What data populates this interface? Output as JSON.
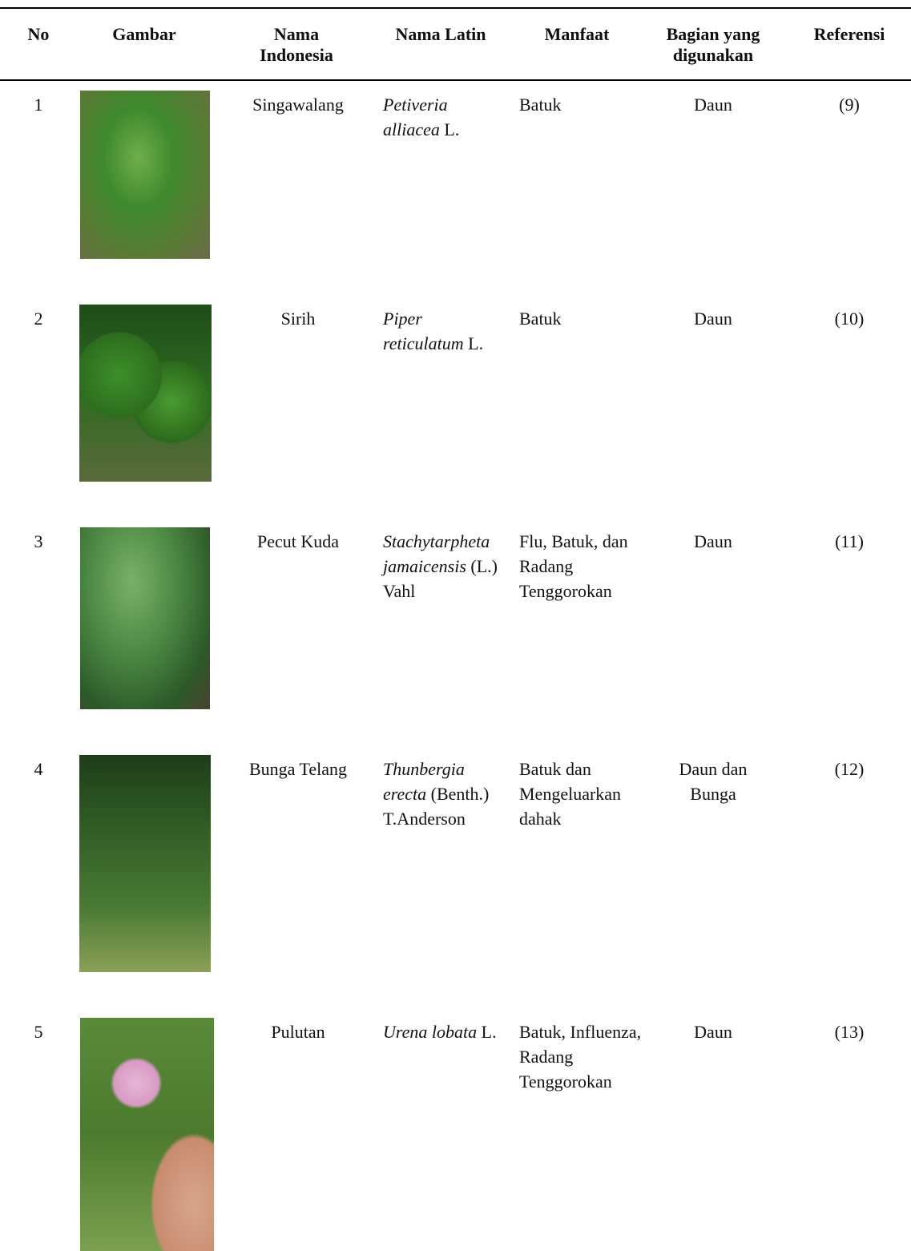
{
  "table": {
    "header": [
      "No",
      "Gambar",
      "Nama Indonesia",
      "Nama Latin",
      "Manfaat",
      "Bagian yang digunakan",
      "Referensi"
    ],
    "rows": [
      {
        "no": "1",
        "nama_indonesia": "Singawalang",
        "nama_latin": {
          "genus_species": "Petiveria alliacea",
          "author": "L."
        },
        "manfaat": "Batuk",
        "bagian": "Daun",
        "referensi": "(9)"
      },
      {
        "no": "2",
        "nama_indonesia": "Sirih",
        "nama_latin": {
          "genus_species": "Piper reticulatum",
          "author": "L."
        },
        "manfaat": "Batuk",
        "bagian": "Daun",
        "referensi": "(10)"
      },
      {
        "no": "3",
        "nama_indonesia": "Pecut Kuda",
        "nama_latin": {
          "genus_species": "Stachytarpheta jamaicensis",
          "author": "(L.) Vahl"
        },
        "manfaat": "Flu, Batuk, dan Radang Tenggorokan",
        "bagian": "Daun",
        "referensi": "(11)"
      },
      {
        "no": "4",
        "nama_indonesia": "Bunga Telang",
        "nama_latin": {
          "genus_species": "Thunbergia erecta",
          "author": "(Benth.) T.Anderson"
        },
        "manfaat": "Batuk dan Mengeluarkan dahak",
        "bagian": "Daun dan Bunga",
        "referensi": "(12)"
      },
      {
        "no": "5",
        "nama_indonesia": "Pulutan",
        "nama_latin": {
          "genus_species": "Urena lobata",
          "author": "L."
        },
        "manfaat": "Batuk, Influenza, Radang Tenggorokan",
        "bagian": "Daun",
        "referensi": "(13)"
      }
    ]
  }
}
